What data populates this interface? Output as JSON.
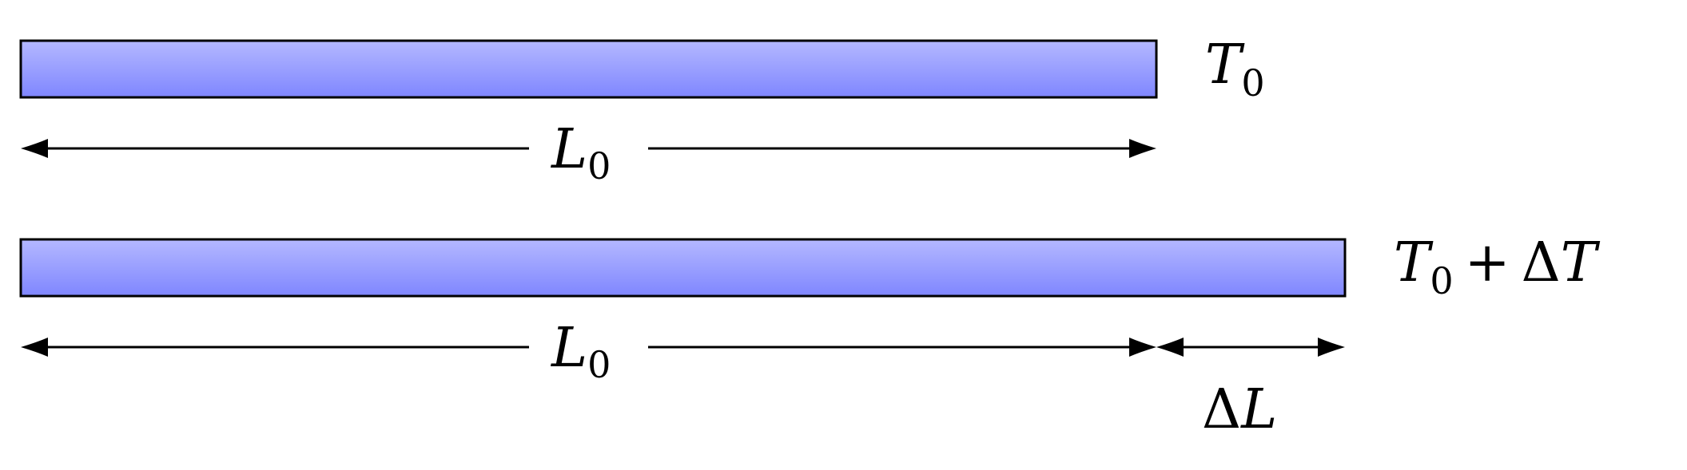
{
  "rod_fill": {
    "top": "#b4b8ff",
    "bottom": "#7f86ff"
  },
  "outline_color": "#000000",
  "top_rod": {
    "temperature": {
      "symbol": "T",
      "subscript": "0"
    },
    "length": {
      "symbol": "L",
      "subscript": "0"
    }
  },
  "bottom_rod": {
    "temperature": {
      "symbol": "T",
      "subscript": "0",
      "plus": "+",
      "delta": "Δ",
      "symbol2": "T"
    },
    "length": {
      "symbol": "L",
      "subscript": "0"
    },
    "extension": {
      "delta": "Δ",
      "symbol": "L"
    }
  }
}
